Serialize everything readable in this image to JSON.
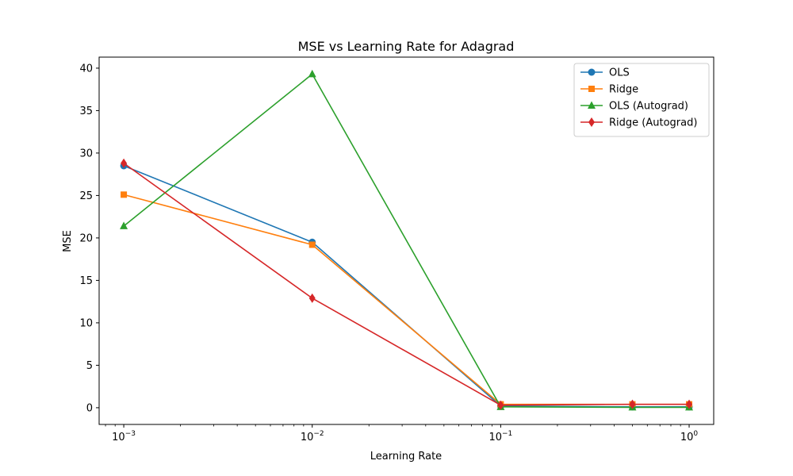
{
  "chart_data": {
    "type": "line",
    "title": "MSE vs Learning Rate for Adagrad",
    "xlabel": "Learning Rate",
    "ylabel": "MSE",
    "xscale": "log",
    "x": [
      0.001,
      0.01,
      0.1,
      0.5,
      1.0
    ],
    "xlim": [
      0.00074,
      1.35
    ],
    "ylim": [
      -1.97,
      41.3
    ],
    "x_ticks": [
      {
        "value": 0.001,
        "base": "10",
        "exp": "−3"
      },
      {
        "value": 0.01,
        "base": "10",
        "exp": "−2"
      },
      {
        "value": 0.1,
        "base": "10",
        "exp": "−1"
      },
      {
        "value": 1.0,
        "base": "10",
        "exp": "0"
      }
    ],
    "y_ticks": [
      0,
      5,
      10,
      15,
      20,
      25,
      30,
      35,
      40
    ],
    "grid": false,
    "legend_position": "top-right",
    "series": [
      {
        "name": "OLS",
        "values": [
          28.5,
          19.5,
          0.2,
          0.1,
          0.1
        ],
        "color": "#1f77b4",
        "marker": "circle"
      },
      {
        "name": "Ridge",
        "values": [
          25.1,
          19.2,
          0.4,
          0.4,
          0.4
        ],
        "color": "#ff7f0e",
        "marker": "square"
      },
      {
        "name": "OLS (Autograd)",
        "values": [
          21.4,
          39.3,
          0.1,
          0.05,
          0.05
        ],
        "color": "#2ca02c",
        "marker": "triangle"
      },
      {
        "name": "Ridge (Autograd)",
        "values": [
          28.8,
          12.9,
          0.3,
          0.4,
          0.4
        ],
        "color": "#d62728",
        "marker": "diamond"
      }
    ]
  }
}
